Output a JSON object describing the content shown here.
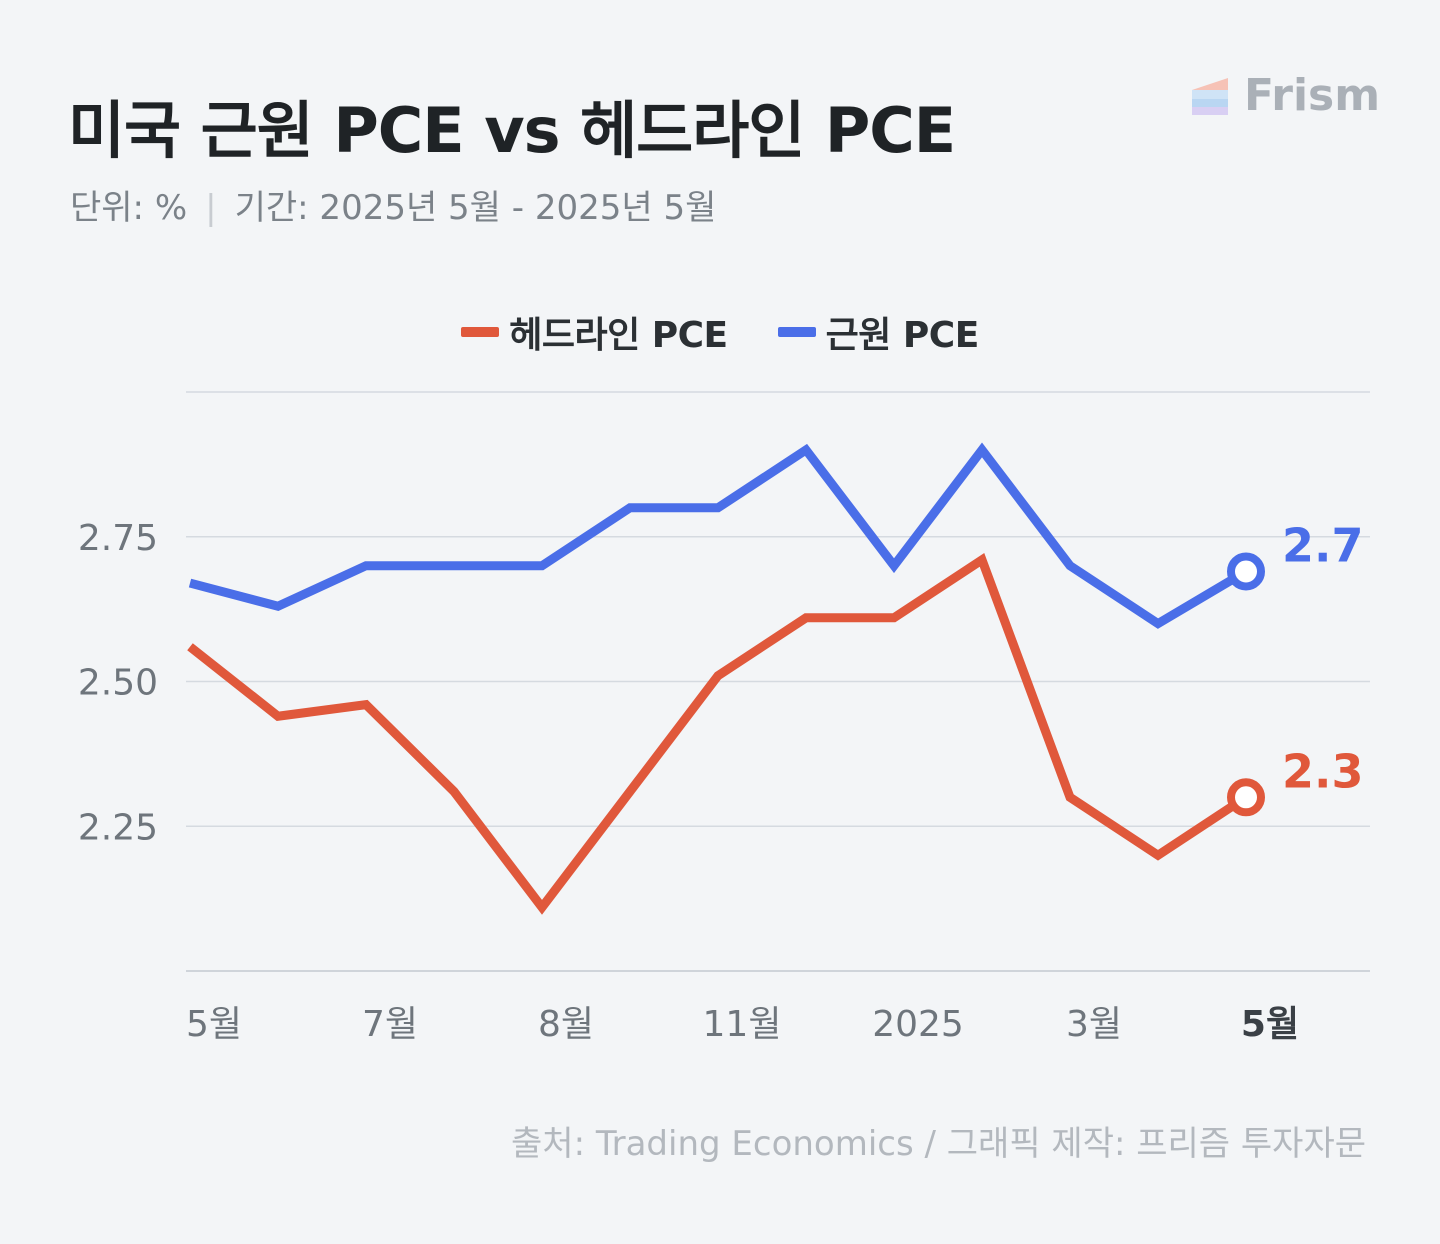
{
  "title": "미국 근원 PCE vs 헤드라인 PCE",
  "subtitle": {
    "unit": "단위: %",
    "separator": "|",
    "period": "기간: 2025년 5월 - 2025년 5월"
  },
  "logo": {
    "text": "Frism"
  },
  "source": "출처: Trading Economics  / 그래픽 제작: 프리즘 투자자문",
  "colors": {
    "headline": "#e0583b",
    "core": "#4a6ee8",
    "grid": "#d5dae0",
    "axis_text": "#6e757c",
    "background": "#f3f5f7"
  },
  "chart_data": {
    "type": "line",
    "title": "미국 근원 PCE vs 헤드라인 PCE",
    "unit": "%",
    "legend_position": "top-center",
    "grid": true,
    "ylim": [
      2.0,
      3.0
    ],
    "y_ticks": [
      2.25,
      2.5,
      2.75
    ],
    "y_tick_labels": [
      "2.25",
      "2.50",
      "2.75"
    ],
    "x_tick_labels": [
      {
        "index": 0,
        "label": "5월",
        "bold": false
      },
      {
        "index": 2,
        "label": "7월",
        "bold": false
      },
      {
        "index": 4,
        "label": "8월",
        "bold": false
      },
      {
        "index": 6,
        "label": "11월",
        "bold": false
      },
      {
        "index": 8,
        "label": "2025",
        "bold": false
      },
      {
        "index": 10,
        "label": "3월",
        "bold": false
      },
      {
        "index": 12,
        "label": "5월",
        "bold": true
      }
    ],
    "series": [
      {
        "key": "headline",
        "name": "헤드라인 PCE",
        "color": "#e0583b",
        "values": [
          2.56,
          2.44,
          2.46,
          2.31,
          2.11,
          2.31,
          2.51,
          2.61,
          2.61,
          2.71,
          2.3,
          2.2,
          2.3
        ],
        "end_label": "2.3"
      },
      {
        "key": "core",
        "name": "근원 PCE",
        "color": "#4a6ee8",
        "values": [
          2.67,
          2.63,
          2.7,
          2.7,
          2.7,
          2.8,
          2.8,
          2.9,
          2.7,
          2.9,
          2.7,
          2.6,
          2.69
        ],
        "end_label": "2.7"
      }
    ]
  }
}
